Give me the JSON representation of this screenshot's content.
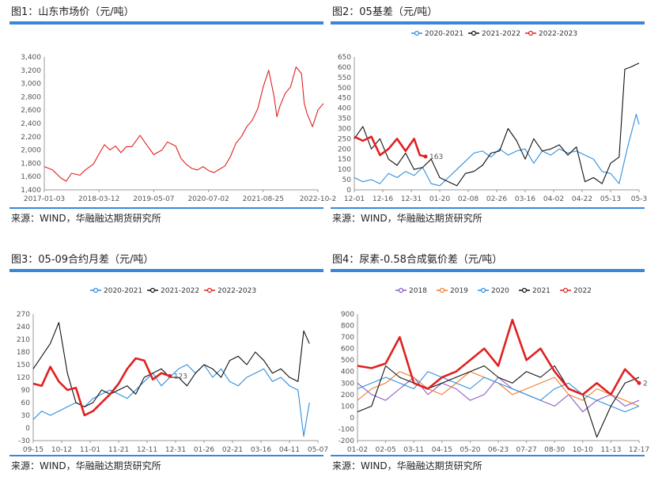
{
  "source_label": "来源：WIND，华融融达期货研究所",
  "chart_data": [
    {
      "id": "c1",
      "type": "line",
      "title": "图1：山东市场价（元/吨）",
      "xlabel": "",
      "ylabel": "",
      "ylim": [
        1400,
        3400
      ],
      "yticks": [
        "1,400",
        "1,600",
        "1,800",
        "2,000",
        "2,200",
        "2,400",
        "2,600",
        "2,800",
        "3,000",
        "3,200",
        "3,400"
      ],
      "xticks": [
        "2017-01-03",
        "2018-03-12",
        "2019-05-07",
        "2020-07-02",
        "2021-08-25",
        "2022-10-2"
      ],
      "series": [
        {
          "color": "#e02020",
          "x": [
            0,
            3,
            6,
            8,
            10,
            13,
            15,
            18,
            20,
            22,
            24,
            26,
            28,
            30,
            32,
            35,
            37,
            40,
            43,
            45,
            48,
            50,
            52,
            54,
            56,
            58,
            60,
            62,
            64,
            66,
            68,
            70,
            72,
            74,
            76,
            78,
            80,
            82,
            84,
            85,
            86,
            88,
            90,
            92,
            94,
            95,
            96,
            98,
            100,
            102
          ],
          "values": [
            1750,
            1700,
            1580,
            1530,
            1650,
            1620,
            1700,
            1790,
            1940,
            2080,
            2000,
            2060,
            1960,
            2050,
            2050,
            2220,
            2100,
            1930,
            2000,
            2120,
            2060,
            1870,
            1780,
            1720,
            1700,
            1750,
            1690,
            1660,
            1710,
            1760,
            1900,
            2100,
            2200,
            2350,
            2450,
            2620,
            2950,
            3200,
            2800,
            2500,
            2650,
            2850,
            2950,
            3250,
            3150,
            2700,
            2550,
            2350,
            2600,
            2700
          ]
        }
      ]
    },
    {
      "id": "c2",
      "type": "line",
      "title": "图2：05基差（元/吨）",
      "xlabel": "",
      "ylabel": "",
      "ylim": [
        0,
        650
      ],
      "yticks": [
        "0",
        "50",
        "100",
        "150",
        "200",
        "250",
        "300",
        "350",
        "400",
        "450",
        "500",
        "550",
        "600",
        "650"
      ],
      "xticks": [
        "12-01",
        "12-16",
        "12-31",
        "01-20",
        "02-08",
        "02-26",
        "03-16",
        "04-02",
        "04-22",
        "05-13",
        "05-3"
      ],
      "annotation": "163",
      "series": [
        {
          "name": "2020-2021",
          "color": "#2e8fe0",
          "x": [
            0,
            3,
            6,
            9,
            12,
            15,
            18,
            21,
            24,
            27,
            30,
            33,
            36,
            39,
            42,
            45,
            48,
            51,
            54,
            57,
            60,
            63,
            66,
            69,
            72,
            75,
            78,
            81,
            84,
            87,
            90,
            93,
            96,
            99,
            100
          ],
          "values": [
            60,
            40,
            50,
            30,
            80,
            60,
            90,
            70,
            110,
            30,
            20,
            60,
            100,
            140,
            180,
            190,
            160,
            200,
            170,
            190,
            200,
            130,
            190,
            170,
            200,
            180,
            190,
            170,
            150,
            90,
            80,
            30,
            210,
            370,
            320
          ]
        },
        {
          "name": "2021-2022",
          "color": "#111111",
          "x": [
            0,
            3,
            6,
            9,
            12,
            15,
            18,
            21,
            24,
            27,
            30,
            33,
            36,
            39,
            42,
            45,
            48,
            51,
            54,
            57,
            60,
            63,
            66,
            69,
            72,
            75,
            78,
            81,
            84,
            87,
            90,
            93,
            95,
            97,
            100
          ],
          "values": [
            250,
            310,
            200,
            250,
            150,
            120,
            180,
            100,
            110,
            150,
            60,
            40,
            20,
            80,
            90,
            120,
            180,
            190,
            300,
            240,
            150,
            250,
            190,
            200,
            220,
            170,
            210,
            40,
            60,
            30,
            130,
            160,
            590,
            600,
            620
          ]
        },
        {
          "name": "2022-2023",
          "color": "#e02020",
          "x": [
            0,
            3,
            6,
            9,
            12,
            15,
            18,
            21,
            23,
            25
          ],
          "values": [
            260,
            240,
            260,
            170,
            200,
            250,
            190,
            250,
            170,
            163
          ]
        }
      ]
    },
    {
      "id": "c3",
      "type": "line",
      "title": "图3：05-09合约月差（元/吨）",
      "xlabel": "",
      "ylabel": "",
      "ylim": [
        -30,
        270
      ],
      "yticks": [
        "-30",
        "0",
        "30",
        "60",
        "90",
        "120",
        "150",
        "180",
        "210",
        "240",
        "270"
      ],
      "xticks": [
        "09-15",
        "10-12",
        "11-01",
        "11-21",
        "12-11",
        "12-31",
        "01-26",
        "02-21",
        "03-16",
        "04-11",
        "05-07"
      ],
      "annotation": "123",
      "series": [
        {
          "name": "2020-2021",
          "color": "#2e8fe0",
          "x": [
            0,
            3,
            6,
            9,
            12,
            15,
            18,
            21,
            24,
            27,
            30,
            33,
            36,
            39,
            42,
            45,
            48,
            51,
            54,
            57,
            60,
            63,
            66,
            69,
            72,
            75,
            78,
            81,
            84,
            87,
            90,
            93,
            95,
            97
          ],
          "values": [
            20,
            40,
            30,
            40,
            50,
            60,
            50,
            70,
            80,
            90,
            80,
            70,
            90,
            110,
            130,
            100,
            120,
            140,
            150,
            130,
            150,
            120,
            140,
            110,
            100,
            120,
            130,
            140,
            110,
            120,
            100,
            90,
            -20,
            60
          ]
        },
        {
          "name": "2021-2022",
          "color": "#111111",
          "x": [
            0,
            3,
            6,
            9,
            12,
            15,
            18,
            21,
            24,
            27,
            30,
            33,
            36,
            39,
            42,
            45,
            48,
            51,
            54,
            57,
            60,
            63,
            66,
            69,
            72,
            75,
            78,
            81,
            84,
            87,
            90,
            93,
            95,
            97
          ],
          "values": [
            140,
            170,
            200,
            250,
            130,
            60,
            50,
            60,
            90,
            80,
            90,
            100,
            80,
            120,
            130,
            140,
            120,
            120,
            100,
            130,
            150,
            140,
            120,
            160,
            170,
            150,
            180,
            160,
            130,
            140,
            120,
            110,
            230,
            200
          ]
        },
        {
          "name": "2022-2023",
          "color": "#e02020",
          "x": [
            0,
            3,
            6,
            9,
            12,
            15,
            18,
            21,
            24,
            27,
            30,
            33,
            36,
            39,
            42,
            45,
            48
          ],
          "values": [
            105,
            100,
            145,
            110,
            90,
            95,
            30,
            40,
            60,
            80,
            105,
            140,
            165,
            160,
            115,
            130,
            123
          ]
        }
      ]
    },
    {
      "id": "c4",
      "type": "line",
      "title": "图4：尿素-0.58合成氨价差（元/吨）",
      "xlabel": "",
      "ylabel": "",
      "ylim": [
        -200,
        900
      ],
      "yticks": [
        "-200",
        "-100",
        "0",
        "100",
        "200",
        "300",
        "400",
        "500",
        "600",
        "700",
        "800",
        "900"
      ],
      "xticks": [
        "01-02",
        "02-05",
        "03-11",
        "04-15",
        "05-20",
        "06-23",
        "07-27",
        "08-30",
        "10-10",
        "11-13",
        "12-17"
      ],
      "annotation": "2",
      "series": [
        {
          "name": "2018",
          "color": "#8a5cc4",
          "x": [
            0,
            5,
            10,
            15,
            20,
            25,
            30,
            35,
            40,
            45,
            50,
            55,
            60,
            65,
            70,
            75,
            80,
            85,
            90,
            95,
            100
          ],
          "values": [
            300,
            200,
            150,
            250,
            350,
            200,
            300,
            250,
            150,
            200,
            350,
            250,
            200,
            150,
            100,
            200,
            50,
            150,
            200,
            100,
            150
          ]
        },
        {
          "name": "2019",
          "color": "#f07c2a",
          "x": [
            0,
            5,
            10,
            15,
            20,
            25,
            30,
            35,
            40,
            45,
            50,
            55,
            60,
            65,
            70,
            75,
            80,
            85,
            90,
            95,
            100
          ],
          "values": [
            150,
            250,
            300,
            400,
            350,
            250,
            200,
            300,
            400,
            350,
            300,
            200,
            250,
            300,
            350,
            200,
            150,
            250,
            200,
            150,
            100
          ]
        },
        {
          "name": "2020",
          "color": "#2e8fe0",
          "x": [
            0,
            5,
            10,
            15,
            20,
            25,
            30,
            35,
            40,
            45,
            50,
            55,
            60,
            65,
            70,
            75,
            80,
            85,
            90,
            95,
            100
          ],
          "values": [
            250,
            300,
            350,
            300,
            250,
            400,
            350,
            300,
            250,
            350,
            300,
            250,
            200,
            150,
            250,
            300,
            200,
            150,
            100,
            50,
            100
          ]
        },
        {
          "name": "2021",
          "color": "#111111",
          "x": [
            0,
            5,
            10,
            15,
            20,
            25,
            30,
            35,
            40,
            45,
            50,
            55,
            60,
            65,
            70,
            75,
            80,
            85,
            90,
            95,
            100
          ],
          "values": [
            50,
            100,
            450,
            350,
            300,
            250,
            300,
            350,
            400,
            450,
            350,
            300,
            400,
            350,
            450,
            250,
            200,
            -170,
            100,
            300,
            350
          ]
        },
        {
          "name": "2022",
          "color": "#e02020",
          "x": [
            0,
            5,
            10,
            15,
            20,
            25,
            30,
            35,
            40,
            45,
            50,
            55,
            60,
            65,
            70,
            75,
            80,
            85,
            90,
            95,
            100
          ],
          "values": [
            450,
            430,
            470,
            700,
            300,
            250,
            350,
            400,
            500,
            600,
            450,
            850,
            500,
            600,
            400,
            250,
            200,
            300,
            200,
            420,
            300
          ]
        }
      ]
    }
  ]
}
